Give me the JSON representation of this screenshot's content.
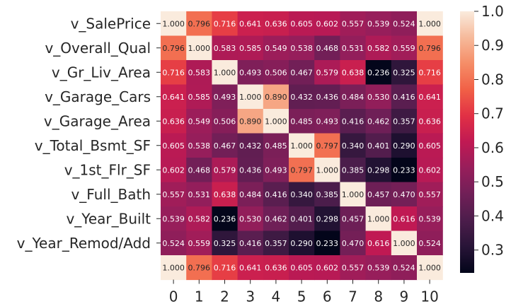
{
  "chart_data": {
    "type": "heatmap",
    "title": "",
    "xlabel": "",
    "ylabel": "",
    "row_labels": [
      "v_SalePrice",
      "v_Overall_Qual",
      "v_Gr_Liv_Area",
      "v_Garage_Cars",
      "v_Garage_Area",
      "v_Total_Bsmt_SF",
      "v_1st_Flr_SF",
      "v_Full_Bath",
      "v_Year_Built",
      "v_Year_Remod/Add",
      ""
    ],
    "col_labels": [
      "0",
      "1",
      "2",
      "3",
      "4",
      "5",
      "6",
      "7",
      "8",
      "9",
      "10"
    ],
    "values": [
      [
        1.0,
        0.796,
        0.716,
        0.641,
        0.636,
        0.605,
        0.602,
        0.557,
        0.539,
        0.524,
        1.0
      ],
      [
        0.796,
        1.0,
        0.583,
        0.585,
        0.549,
        0.538,
        0.468,
        0.531,
        0.582,
        0.559,
        0.796
      ],
      [
        0.716,
        0.583,
        1.0,
        0.493,
        0.506,
        0.467,
        0.579,
        0.638,
        0.236,
        0.325,
        0.716
      ],
      [
        0.641,
        0.585,
        0.493,
        1.0,
        0.89,
        0.432,
        0.436,
        0.484,
        0.53,
        0.416,
        0.641
      ],
      [
        0.636,
        0.549,
        0.506,
        0.89,
        1.0,
        0.485,
        0.493,
        0.416,
        0.462,
        0.357,
        0.636
      ],
      [
        0.605,
        0.538,
        0.467,
        0.432,
        0.485,
        1.0,
        0.797,
        0.34,
        0.401,
        0.29,
        0.605
      ],
      [
        0.602,
        0.468,
        0.579,
        0.436,
        0.493,
        0.797,
        1.0,
        0.385,
        0.298,
        0.233,
        0.602
      ],
      [
        0.557,
        0.531,
        0.638,
        0.484,
        0.416,
        0.34,
        0.385,
        1.0,
        0.457,
        0.47,
        0.557
      ],
      [
        0.539,
        0.582,
        0.236,
        0.53,
        0.462,
        0.401,
        0.298,
        0.457,
        1.0,
        0.616,
        0.539
      ],
      [
        0.524,
        0.559,
        0.325,
        0.416,
        0.357,
        0.29,
        0.233,
        0.47,
        0.616,
        1.0,
        0.524
      ],
      [
        1.0,
        0.796,
        0.716,
        0.641,
        0.636,
        0.605,
        0.602,
        0.557,
        0.539,
        0.524,
        1.0
      ]
    ],
    "vmin": 0.233,
    "vmax": 1.0,
    "colormap": "rocket",
    "colorbar_ticks": [
      "0.3",
      "0.4",
      "0.5",
      "0.6",
      "0.7",
      "0.8",
      "0.9",
      "1.0"
    ],
    "grid": false,
    "annotated": true
  }
}
